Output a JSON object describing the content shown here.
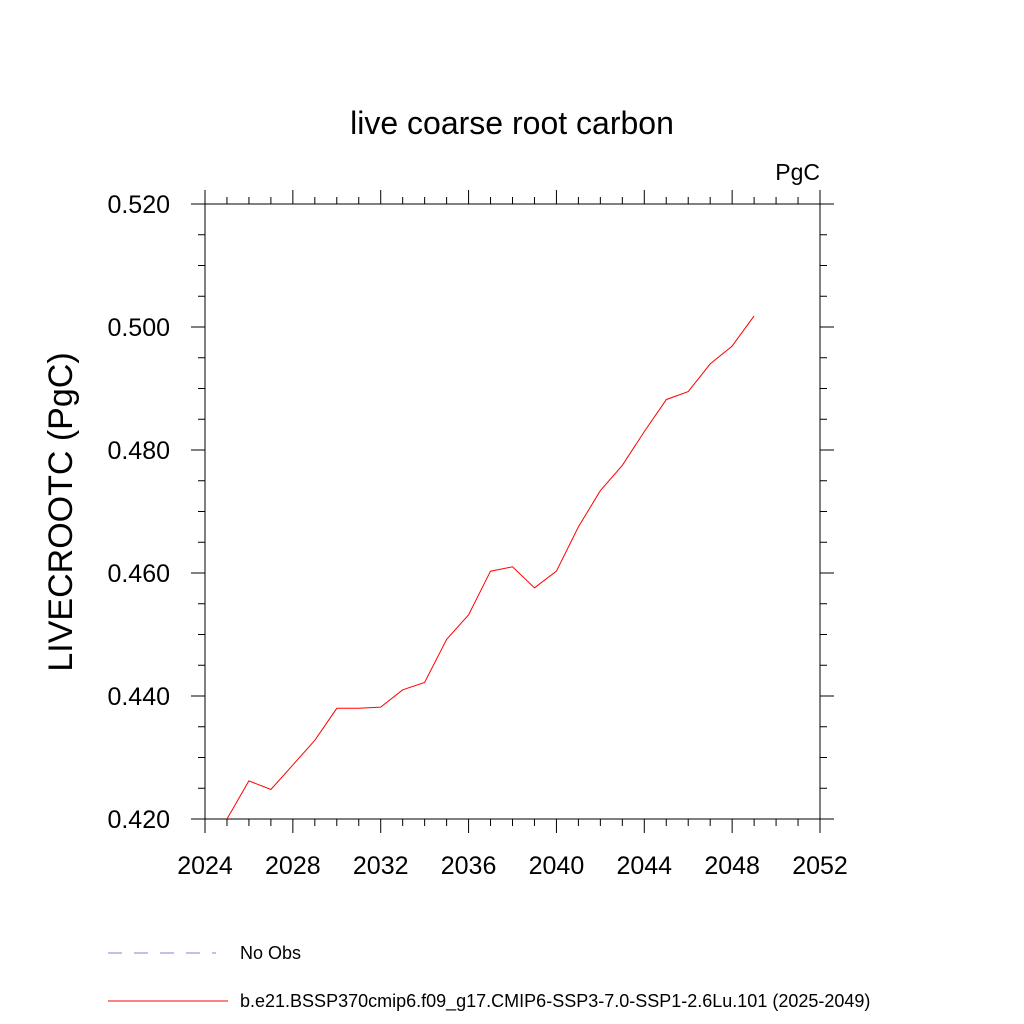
{
  "chart_data": {
    "type": "line",
    "title": "live coarse root carbon",
    "units_label": "PgC",
    "ylabel": "LIVECROOTC  (PgC)",
    "xlabel": "",
    "xlim": [
      2024,
      2052
    ],
    "ylim": [
      0.42,
      0.52
    ],
    "x_ticks": [
      "2024",
      "2028",
      "2032",
      "2036",
      "2040",
      "2044",
      "2048",
      "2052"
    ],
    "y_ticks": [
      "0.420",
      "0.440",
      "0.460",
      "0.480",
      "0.500",
      "0.520"
    ],
    "grid": false,
    "legend_position": "bottom",
    "series": [
      {
        "name": "b.e21.BSSP370cmip6.f09_g17.CMIP6-SSP3-7.0-SSP1-2.6Lu.101 (2025-2049)",
        "color": "#ff0000",
        "style": "solid",
        "x": [
          2025,
          2026,
          2027,
          2028,
          2029,
          2030,
          2031,
          2032,
          2033,
          2034,
          2035,
          2036,
          2037,
          2038,
          2039,
          2040,
          2041,
          2042,
          2043,
          2044,
          2045,
          2046,
          2047,
          2048,
          2049
        ],
        "y": [
          0.42,
          0.4262,
          0.4248,
          0.4288,
          0.4328,
          0.438,
          0.438,
          0.4382,
          0.441,
          0.4422,
          0.4492,
          0.4532,
          0.4603,
          0.461,
          0.4576,
          0.4603,
          0.4675,
          0.4734,
          0.4775,
          0.483,
          0.4882,
          0.4895,
          0.494,
          0.4969,
          0.5018
        ]
      },
      {
        "name": "No Obs",
        "color": "#8a7fd0",
        "style": "dashed",
        "x": [],
        "y": []
      }
    ]
  }
}
